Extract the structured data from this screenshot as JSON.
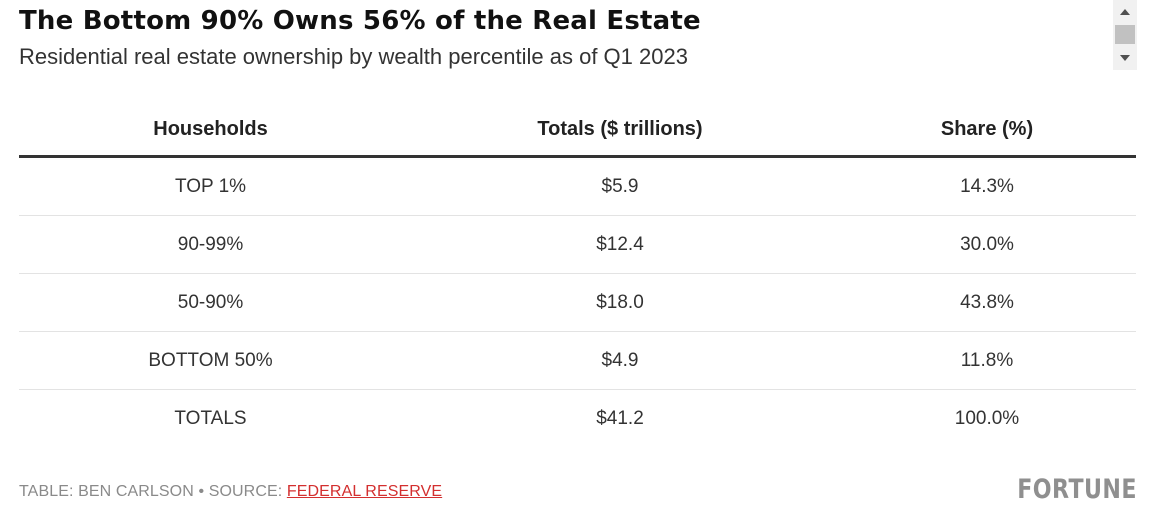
{
  "chart_data": {
    "type": "table",
    "title": "The Bottom 90% Owns 56% of the Real Estate",
    "subtitle": "Residential real estate ownership by wealth percentile as of Q1 2023",
    "columns": [
      "Households",
      "Totals ($ trillions)",
      "Share (%)"
    ],
    "rows": [
      {
        "households": "TOP 1%",
        "total": "$5.9",
        "share": "14.3%"
      },
      {
        "households": "90-99%",
        "total": "$12.4",
        "share": "30.0%"
      },
      {
        "households": "50-90%",
        "total": "$18.0",
        "share": "43.8%"
      },
      {
        "households": "BOTTOM 50%",
        "total": "$4.9",
        "share": "11.8%"
      },
      {
        "households": "TOTALS",
        "total": "$41.2",
        "share": "100.0%"
      }
    ],
    "values": {
      "totals_trillions": [
        5.9,
        12.4,
        18.0,
        4.9,
        41.2
      ],
      "share_percent": [
        14.3,
        30.0,
        43.8,
        11.8,
        100.0
      ]
    }
  },
  "footer": {
    "credit": "TABLE: BEN CARLSON",
    "separator": "•",
    "source_label": "SOURCE:",
    "source_link": "FEDERAL RESERVE"
  },
  "logo": {
    "text": "FORTUNE"
  },
  "colors": {
    "link": "#d32f2f",
    "header_rule": "#333333",
    "row_divider": "#e3e3e3",
    "muted_text": "#8a8a8a"
  },
  "icons": {
    "scroll_up": "arrow-up-icon",
    "scroll_down": "arrow-down-icon"
  }
}
